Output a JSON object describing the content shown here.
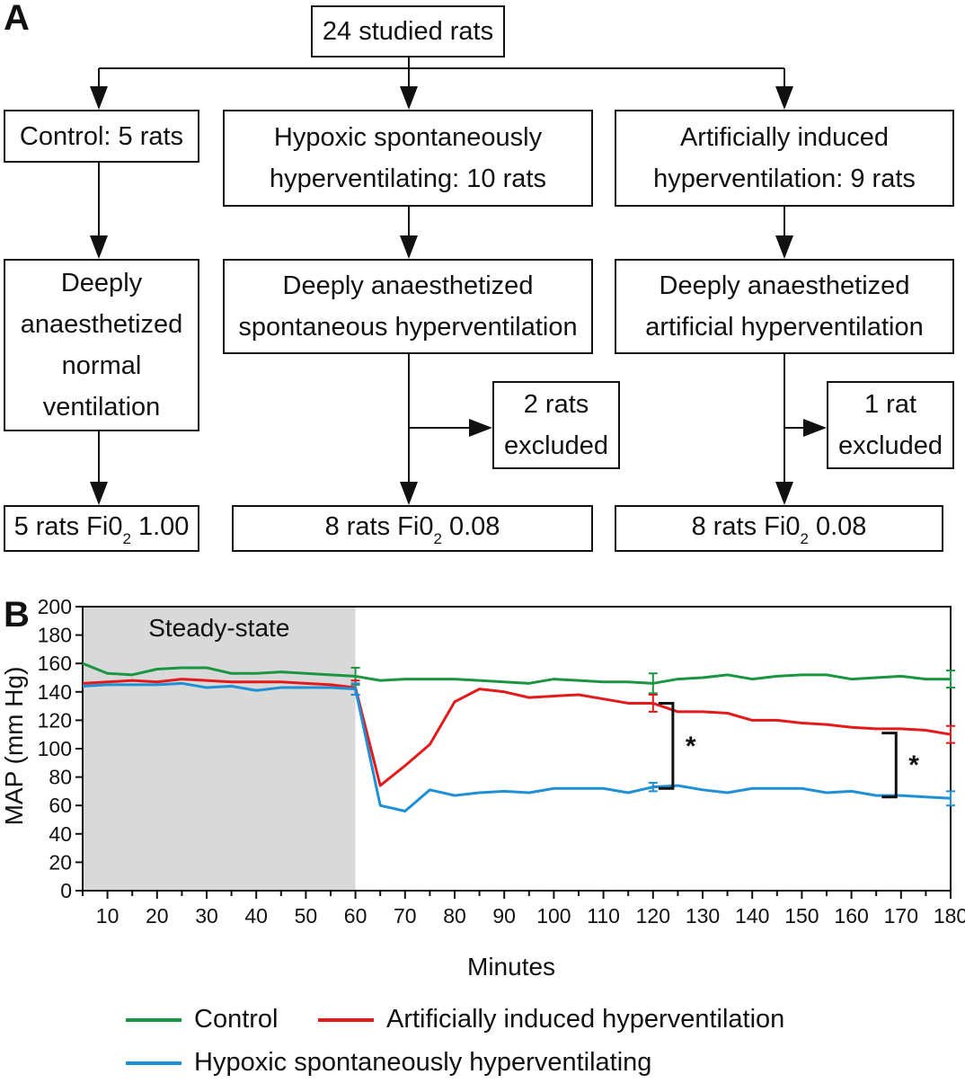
{
  "panel_a": {
    "label": "A",
    "root": "24 studied rats",
    "groups": [
      {
        "group": [
          "Control: 5 rats"
        ],
        "state": [
          "Deeply",
          "anaesthetized",
          "normal",
          "ventilation"
        ],
        "result_prefix": "5 rats Fi0",
        "result_sub": "2",
        "result_suffix": " 1.00"
      },
      {
        "group": [
          "Hypoxic spontaneously",
          "hyperventilating: 10 rats"
        ],
        "state": [
          "Deeply anaesthetized",
          "spontaneous hyperventilation"
        ],
        "excluded": [
          "2 rats",
          "excluded"
        ],
        "result_prefix": "8 rats Fi0",
        "result_sub": "2",
        "result_suffix": " 0.08"
      },
      {
        "group": [
          "Artificially induced",
          "hyperventilation: 9 rats"
        ],
        "state": [
          "Deeply anaesthetized",
          "artificial hyperventilation"
        ],
        "excluded": [
          "1 rat",
          "excluded"
        ],
        "result_prefix": "8 rats Fi0",
        "result_sub": "2",
        "result_suffix": " 0.08"
      }
    ]
  },
  "panel_b": {
    "label": "B",
    "shaded_label": "Steady-state",
    "significance_mark": "*"
  },
  "chart_data": {
    "type": "line",
    "xlabel": "Minutes",
    "ylabel": "MAP (mm Hg)",
    "xlim": [
      5,
      180
    ],
    "ylim": [
      0,
      200
    ],
    "xticks": [
      10,
      20,
      30,
      40,
      50,
      60,
      70,
      80,
      90,
      100,
      110,
      120,
      130,
      140,
      150,
      160,
      170,
      180
    ],
    "yticks": [
      0,
      20,
      40,
      60,
      80,
      100,
      120,
      140,
      160,
      180,
      200
    ],
    "shaded_region": {
      "x": [
        5,
        60
      ],
      "label": "Steady-state",
      "color": "#d9d9d9"
    },
    "series": [
      {
        "name": "Control",
        "color": "#1a9641",
        "x": [
          5,
          10,
          15,
          20,
          25,
          30,
          35,
          40,
          45,
          50,
          55,
          60,
          65,
          70,
          75,
          80,
          85,
          90,
          95,
          100,
          105,
          110,
          115,
          120,
          125,
          130,
          135,
          140,
          145,
          150,
          155,
          160,
          165,
          170,
          175,
          180
        ],
        "y": [
          160,
          153,
          152,
          156,
          157,
          157,
          153,
          153,
          154,
          153,
          152,
          151,
          148,
          149,
          149,
          149,
          148,
          147,
          146,
          149,
          148,
          147,
          147,
          146,
          149,
          150,
          152,
          149,
          151,
          152,
          152,
          149,
          150,
          151,
          149,
          149
        ],
        "error_bars": [
          {
            "x": 60,
            "y": 151,
            "err": 6
          },
          {
            "x": 120,
            "y": 146,
            "err": 7
          },
          {
            "x": 180,
            "y": 149,
            "err": 6
          }
        ]
      },
      {
        "name": "Artificially induced hyperventilation",
        "color": "#e31a1c",
        "x": [
          5,
          10,
          15,
          20,
          25,
          30,
          35,
          40,
          45,
          50,
          55,
          60,
          65,
          70,
          75,
          80,
          85,
          90,
          95,
          100,
          105,
          110,
          115,
          120,
          125,
          130,
          135,
          140,
          145,
          150,
          155,
          160,
          165,
          170,
          175,
          180
        ],
        "y": [
          146,
          147,
          148,
          147,
          149,
          148,
          147,
          147,
          147,
          146,
          145,
          143,
          74,
          88,
          103,
          133,
          142,
          140,
          136,
          137,
          138,
          135,
          132,
          132,
          126,
          126,
          125,
          120,
          120,
          118,
          117,
          115,
          114,
          114,
          113,
          110
        ],
        "error_bars": [
          {
            "x": 60,
            "y": 143,
            "err": 5
          },
          {
            "x": 120,
            "y": 132,
            "err": 6
          },
          {
            "x": 180,
            "y": 110,
            "err": 6
          }
        ]
      },
      {
        "name": "Hypoxic spontaneously hyperventilating",
        "color": "#1f8fd6",
        "x": [
          5,
          10,
          15,
          20,
          25,
          30,
          35,
          40,
          45,
          50,
          55,
          60,
          65,
          70,
          75,
          80,
          85,
          90,
          95,
          100,
          105,
          110,
          115,
          120,
          125,
          130,
          135,
          140,
          145,
          150,
          155,
          160,
          165,
          170,
          175,
          180
        ],
        "y": [
          144,
          145,
          145,
          145,
          146,
          143,
          144,
          141,
          143,
          143,
          143,
          142,
          60,
          56,
          71,
          67,
          69,
          70,
          69,
          72,
          72,
          72,
          69,
          73,
          74,
          71,
          69,
          72,
          72,
          72,
          69,
          70,
          67,
          67,
          66,
          65
        ],
        "error_bars": [
          {
            "x": 60,
            "y": 142,
            "err": 4
          },
          {
            "x": 120,
            "y": 73,
            "err": 3
          },
          {
            "x": 180,
            "y": 65,
            "err": 5
          }
        ]
      }
    ],
    "annotations": [
      {
        "type": "bracket",
        "x": 124,
        "y_range": [
          72,
          132
        ],
        "text": "*"
      },
      {
        "type": "bracket",
        "x": 169,
        "y_range": [
          66,
          111
        ],
        "text": "*"
      }
    ],
    "legend": [
      "Control",
      "Artificially induced hyperventilation",
      "Hypoxic spontaneously hyperventilating"
    ]
  }
}
